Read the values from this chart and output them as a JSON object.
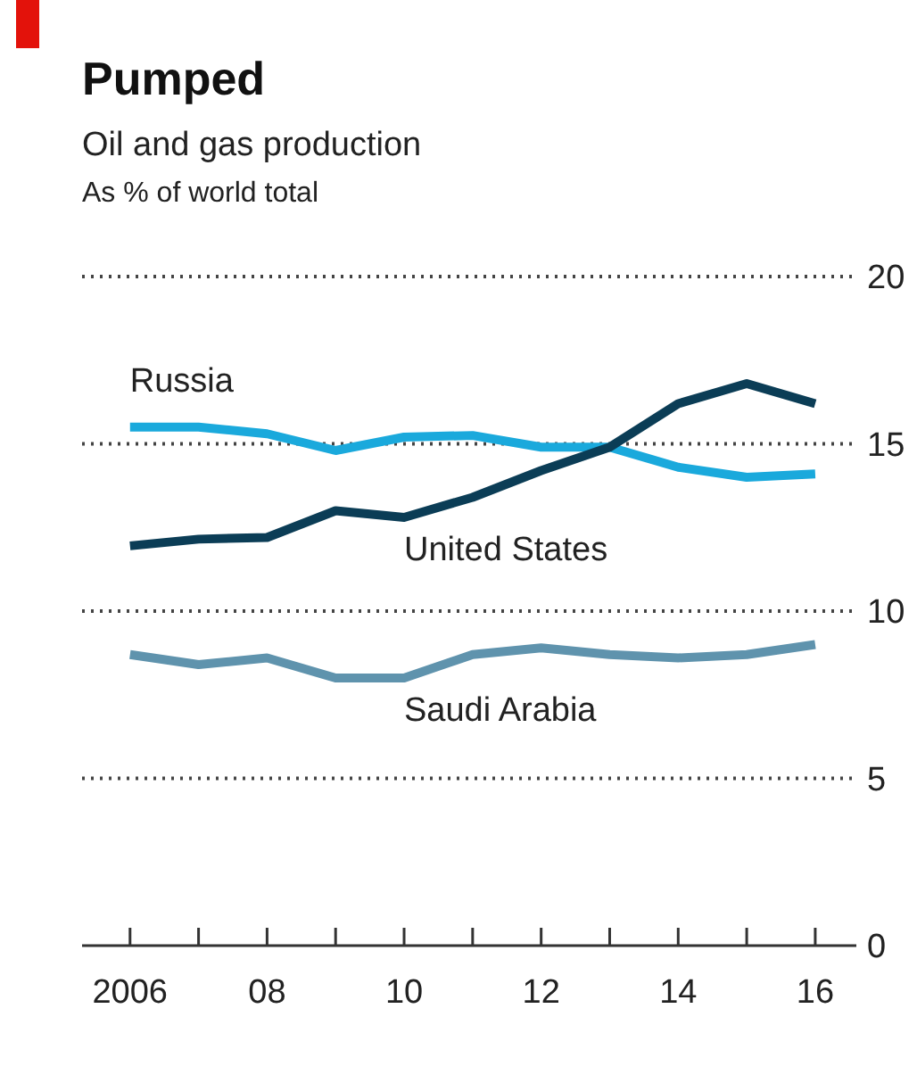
{
  "chart_data": {
    "type": "line",
    "title": "Pumped",
    "subtitle": "Oil and gas production",
    "ylabel": "As % of world total",
    "x": [
      2006,
      2007,
      2008,
      2009,
      2010,
      2011,
      2012,
      2013,
      2014,
      2015,
      2016
    ],
    "xlim": [
      2005.3,
      2016.6
    ],
    "xticks": [
      2006,
      {
        "value": 2007,
        "label": null
      },
      {
        "value": 2008,
        "label": "08"
      },
      {
        "value": 2009,
        "label": null
      },
      {
        "value": 2010,
        "label": "10"
      },
      {
        "value": 2011,
        "label": null
      },
      {
        "value": 2012,
        "label": "12"
      },
      {
        "value": 2013,
        "label": null
      },
      {
        "value": 2014,
        "label": "14"
      },
      {
        "value": 2015,
        "label": null
      },
      {
        "value": 2016,
        "label": "16"
      }
    ],
    "ylim": [
      0,
      20
    ],
    "yticks": [
      0,
      5,
      10,
      15,
      20
    ],
    "grid": "y",
    "legend": false,
    "marker": "none",
    "line_style": "solid",
    "series": [
      {
        "name": "Russia",
        "color": "#1aa9dc",
        "values": [
          15.5,
          15.5,
          15.3,
          14.8,
          15.2,
          15.25,
          14.9,
          14.9,
          14.3,
          14.0,
          14.1
        ]
      },
      {
        "name": "United States",
        "color": "#0b3d56",
        "values": [
          11.95,
          12.15,
          12.2,
          13.0,
          12.8,
          13.4,
          14.2,
          14.9,
          16.2,
          16.8,
          16.2
        ]
      },
      {
        "name": "Saudi Arabia",
        "color": "#5f93ad",
        "values": [
          8.7,
          8.4,
          8.6,
          8.0,
          8.0,
          8.7,
          8.9,
          8.7,
          8.6,
          8.7,
          9.0
        ]
      }
    ]
  }
}
